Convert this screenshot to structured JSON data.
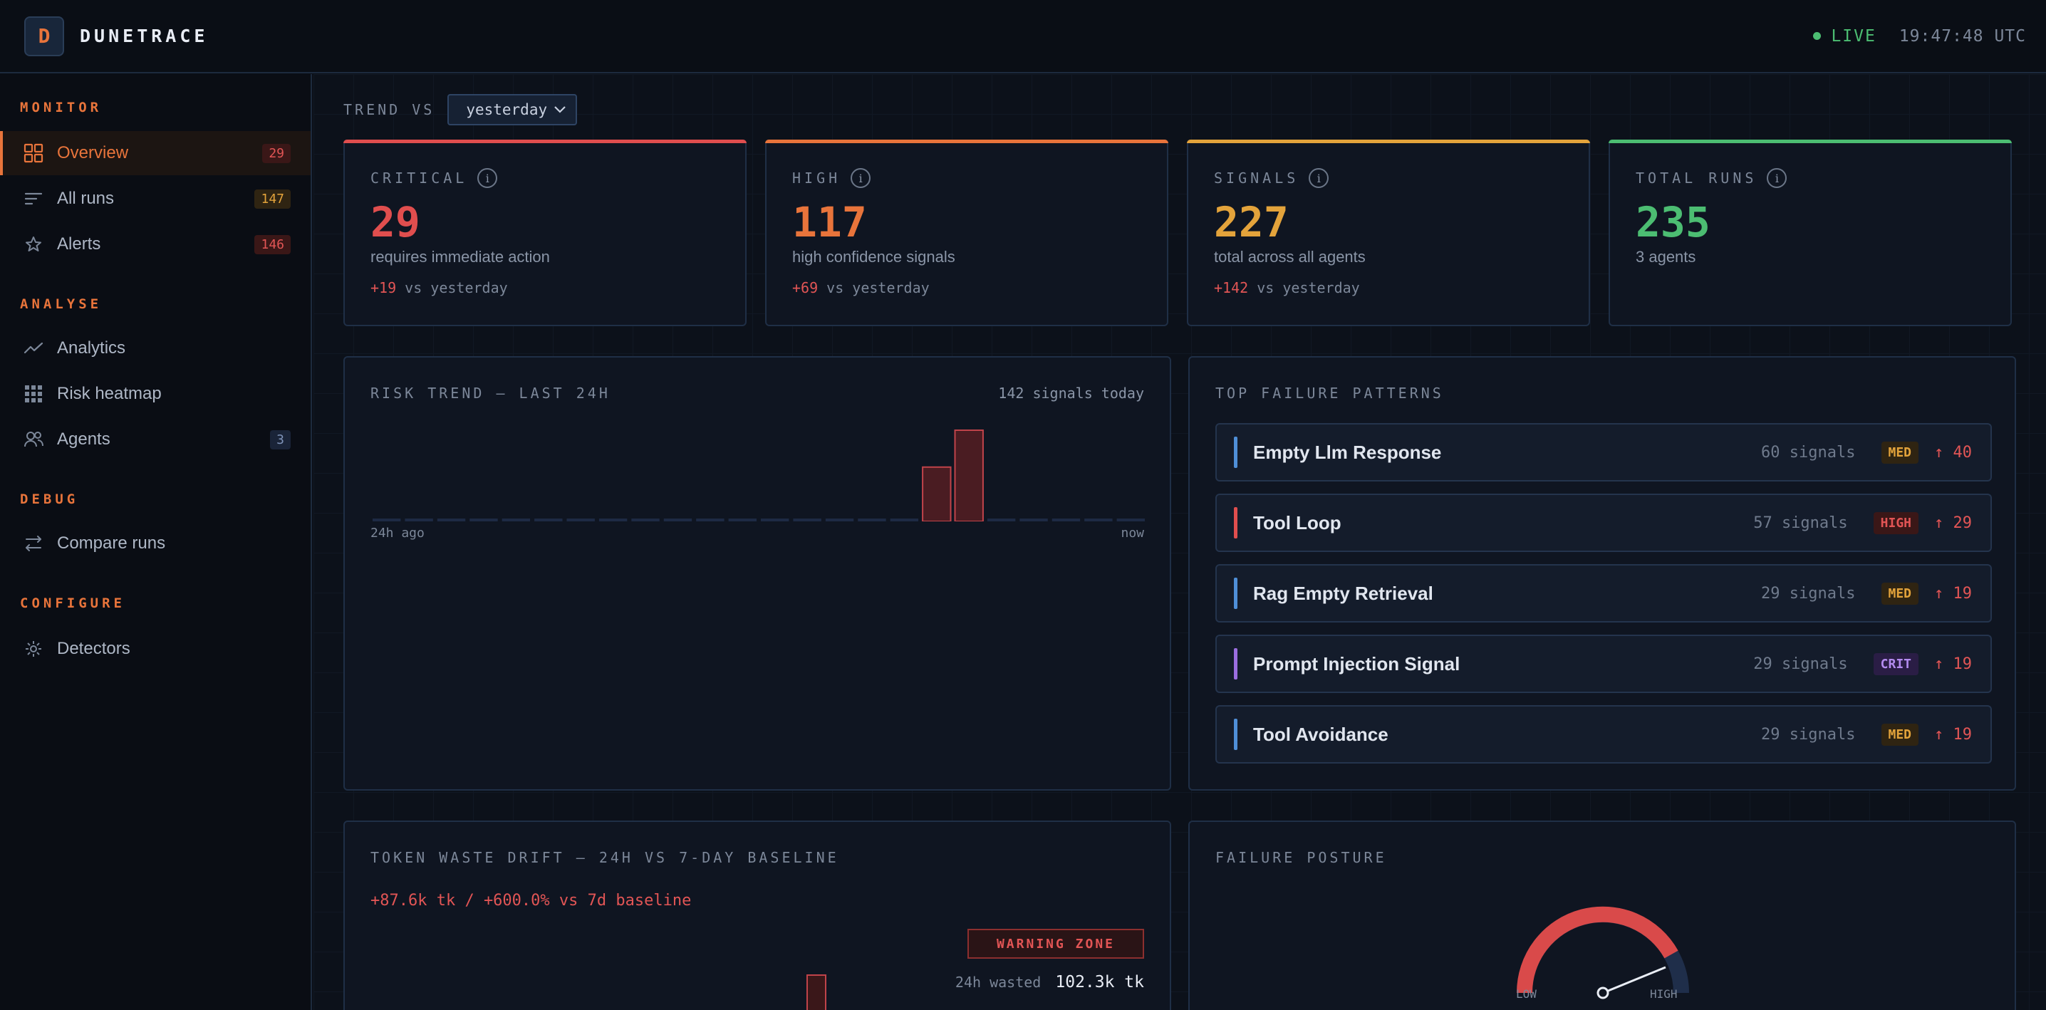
{
  "header": {
    "logo_letter": "D",
    "brand": "DUNETRACE",
    "live_label": "LIVE",
    "clock": "19:47:48 UTC"
  },
  "sidebar": {
    "sections": [
      {
        "label": "MONITOR"
      },
      {
        "label": "ANALYSE"
      },
      {
        "label": "DEBUG"
      },
      {
        "label": "CONFIGURE"
      }
    ],
    "items": [
      {
        "label": "Overview",
        "icon": "grid-icon",
        "badge": "29",
        "active": true
      },
      {
        "label": "All runs",
        "icon": "list-icon",
        "badge": "147"
      },
      {
        "label": "Alerts",
        "icon": "star-icon",
        "badge": "146"
      },
      {
        "label": "Analytics",
        "icon": "line-chart-icon"
      },
      {
        "label": "Risk heatmap",
        "icon": "heatmap-icon"
      },
      {
        "label": "Agents",
        "icon": "users-icon",
        "badge": "3"
      },
      {
        "label": "Compare runs",
        "icon": "compare-icon"
      },
      {
        "label": "Detectors",
        "icon": "gear-icon"
      }
    ]
  },
  "trend": {
    "label": "TREND VS",
    "selected": "yesterday"
  },
  "stats": [
    {
      "label": "CRITICAL",
      "value": "29",
      "sub": "requires immediate action",
      "delta": "+19",
      "delta_suffix": " vs yesterday",
      "color": "#e04e4e"
    },
    {
      "label": "HIGH",
      "value": "117",
      "sub": "high confidence signals",
      "delta": "+69",
      "delta_suffix": " vs yesterday",
      "color": "#e8743b"
    },
    {
      "label": "SIGNALS",
      "value": "227",
      "sub": "total across all agents",
      "delta": "+142",
      "delta_suffix": " vs yesterday",
      "color": "#e3a33b"
    },
    {
      "label": "TOTAL RUNS",
      "value": "235",
      "sub": "3 agents",
      "color": "#4cbd72"
    }
  ],
  "risk_trend": {
    "title": "RISK TREND — LAST 24H",
    "meta": "142 signals today",
    "x_start": "24h ago",
    "x_end": "now"
  },
  "chart_data": {
    "type": "bar",
    "title": "RISK TREND — LAST 24H",
    "x": [
      "24h ago",
      "",
      "",
      "",
      "",
      "",
      "",
      "",
      "",
      "",
      "",
      "",
      "",
      "",
      "",
      "",
      "",
      "",
      "",
      "",
      "",
      "",
      "",
      "now"
    ],
    "values": [
      0,
      0,
      0,
      0,
      0,
      0,
      0,
      0,
      0,
      0,
      0,
      0,
      0,
      0,
      0,
      0,
      0,
      53,
      89,
      0,
      0,
      0,
      0,
      0
    ]
  },
  "failure_patterns": {
    "title": "TOP FAILURE PATTERNS",
    "rows": [
      {
        "name": "Empty Llm Response",
        "count": "60 signals",
        "severity": "MED",
        "delta": "↑ 40",
        "color": "#4f8fd8"
      },
      {
        "name": "Tool Loop",
        "count": "57 signals",
        "severity": "HIGH",
        "delta": "↑ 29",
        "color": "#e04e4e"
      },
      {
        "name": "Rag Empty Retrieval",
        "count": "29 signals",
        "severity": "MED",
        "delta": "↑ 19",
        "color": "#4f8fd8"
      },
      {
        "name": "Prompt Injection Signal",
        "count": "29 signals",
        "severity": "CRIT",
        "delta": "↑ 19",
        "color": "#9b6ee0"
      },
      {
        "name": "Tool Avoidance",
        "count": "29 signals",
        "severity": "MED",
        "delta": "↑ 19",
        "color": "#4f8fd8"
      }
    ]
  },
  "token_waste": {
    "title": "TOKEN WASTE DRIFT — 24H VS 7-DAY BASELINE",
    "headline": "+87.6k tk / +600.0% vs 7d baseline",
    "zone": "WARNING ZONE",
    "wasted_label": "24h wasted",
    "wasted_value": "102.3k tk"
  },
  "posture": {
    "title": "FAILURE POSTURE",
    "low_label": "LOW",
    "high_label": "HIGH"
  }
}
